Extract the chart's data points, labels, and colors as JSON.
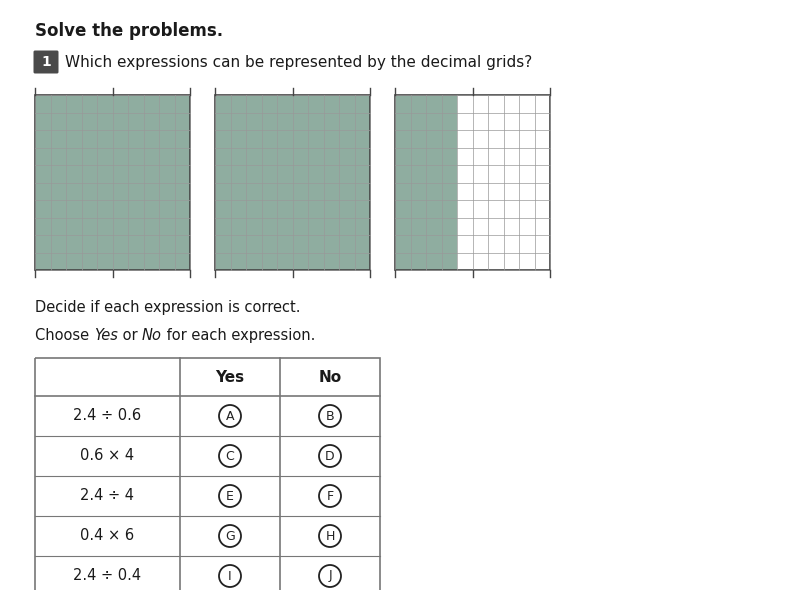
{
  "title_bold": "Solve the problems.",
  "question_number": "1",
  "question_number_bg": "#4a4a4a",
  "question_text": "Which expressions can be represented by the decimal grids?",
  "grid_cols": 10,
  "grid_rows": 10,
  "grid_color_filled": "#8fada0",
  "grid_color_empty": "#ffffff",
  "grid_line_color": "#999999",
  "grid_border_color": "#444444",
  "grid_tick_color": "#444444",
  "grids": [
    {
      "filled_cols": 10
    },
    {
      "filled_cols": 10
    },
    {
      "filled_cols": 4
    }
  ],
  "instruction1": "Decide if each expression is correct.",
  "instruction2_parts": [
    {
      "text": "Choose ",
      "italic": false
    },
    {
      "text": "Yes",
      "italic": true
    },
    {
      "text": " or ",
      "italic": false
    },
    {
      "text": "No",
      "italic": true
    },
    {
      "text": " for each expression.",
      "italic": false
    }
  ],
  "table_header_yes": "Yes",
  "table_header_no": "No",
  "table_rows": [
    {
      "expr": "2.4 ÷ 0.6",
      "yes_letter": "A",
      "no_letter": "B"
    },
    {
      "expr": "0.6 × 4",
      "yes_letter": "C",
      "no_letter": "D"
    },
    {
      "expr": "2.4 ÷ 4",
      "yes_letter": "E",
      "no_letter": "F"
    },
    {
      "expr": "0.4 × 6",
      "yes_letter": "G",
      "no_letter": "H"
    },
    {
      "expr": "2.4 ÷ 0.4",
      "yes_letter": "I",
      "no_letter": "J"
    }
  ],
  "bg_color": "#ffffff",
  "text_color": "#1a1a1a",
  "circle_color": "#222222",
  "table_line_color": "#777777",
  "title_fontsize": 12,
  "question_fontsize": 11,
  "instr_fontsize": 10.5,
  "table_expr_fontsize": 10.5,
  "table_header_fontsize": 11,
  "circle_letter_fontsize": 9
}
